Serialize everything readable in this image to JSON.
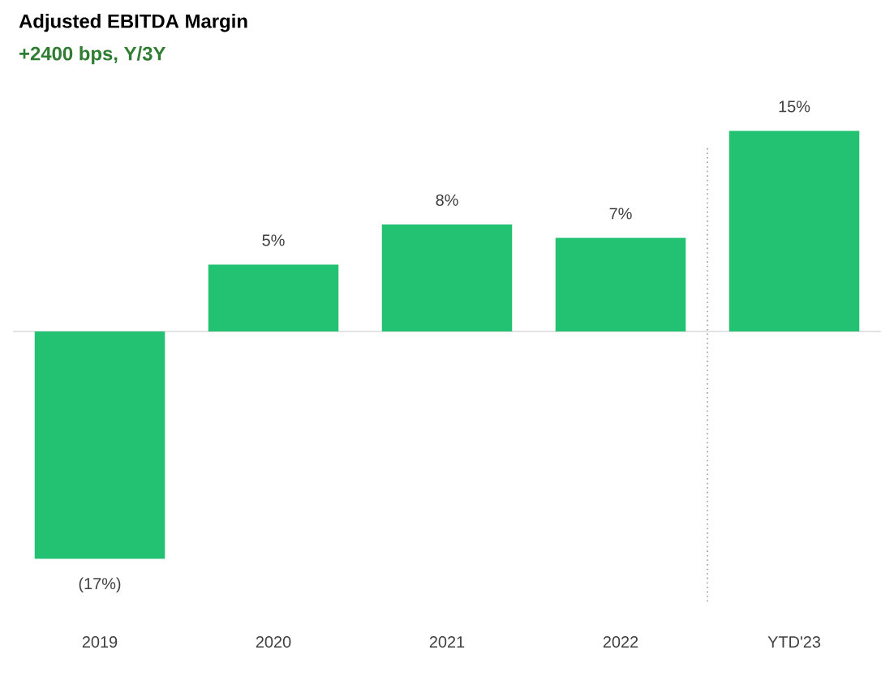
{
  "chart_data": {
    "type": "bar",
    "title": "Adjusted EBITDA Margin",
    "subtitle": "+2400 bps, Y/3Y",
    "categories": [
      "2019",
      "2020",
      "2021",
      "2022",
      "YTD'23"
    ],
    "values": [
      -17,
      5,
      8,
      7,
      15
    ],
    "value_labels": [
      "(17%)",
      "5%",
      "8%",
      "7%",
      "15%"
    ],
    "color": "#22c272"
  }
}
